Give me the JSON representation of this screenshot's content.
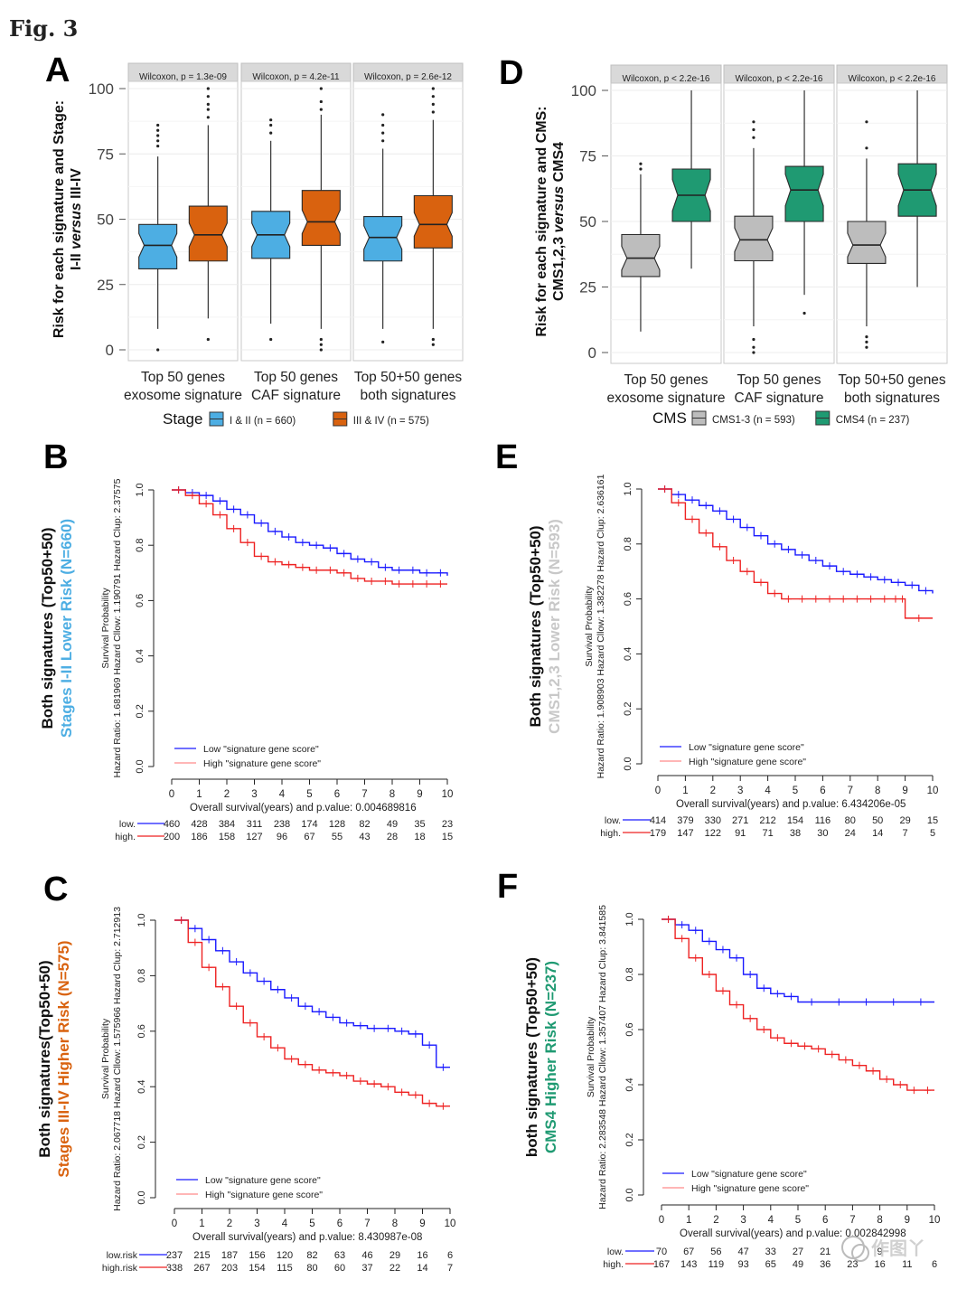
{
  "figure_label": "Fig. 3",
  "chart_data": [
    {
      "panel": "A",
      "type": "box",
      "ylabel": "Risk for each signature and Stage:\nI-II versus III-IV",
      "ylim": [
        0,
        100
      ],
      "yticks": [
        0,
        25,
        50,
        75,
        100
      ],
      "legend_title": "Stage",
      "legend": [
        {
          "label": "I & II (n = 660)",
          "color": "#4daee3"
        },
        {
          "label": "III & IV (n = 575)",
          "color": "#d9620f"
        }
      ],
      "facets": [
        {
          "strip": "Wilcoxon, p = 1.3e-09",
          "label1": "Top 50 genes",
          "label2": "exosome signature",
          "boxes": [
            {
              "min": 8,
              "q1": 31,
              "median": 40,
              "q3": 48,
              "max": 74,
              "notch": 1.5,
              "outliers": [
                0,
                78,
                80,
                82,
                84,
                86
              ]
            },
            {
              "min": 12,
              "q1": 34,
              "median": 44,
              "q3": 55,
              "max": 86,
              "notch": 1.5,
              "outliers": [
                4,
                89,
                92,
                94,
                97,
                100
              ]
            }
          ]
        },
        {
          "strip": "Wilcoxon, p = 4.2e-11",
          "label1": "Top 50 genes",
          "label2": "CAF signature",
          "boxes": [
            {
              "min": 10,
              "q1": 35,
              "median": 44,
              "q3": 53,
              "max": 80,
              "notch": 1.5,
              "outliers": [
                4,
                83,
                86,
                88
              ]
            },
            {
              "min": 8,
              "q1": 40,
              "median": 49,
              "q3": 61,
              "max": 90,
              "notch": 1.5,
              "outliers": [
                0,
                2,
                4,
                92,
                95,
                100
              ]
            }
          ]
        },
        {
          "strip": "Wilcoxon, p = 2.6e-12",
          "label1": "Top 50+50 genes",
          "label2": "both signatures",
          "boxes": [
            {
              "min": 8,
              "q1": 34,
              "median": 43,
              "q3": 51,
              "max": 77,
              "notch": 1.5,
              "outliers": [
                3,
                80,
                83,
                86,
                90
              ]
            },
            {
              "min": 8,
              "q1": 39,
              "median": 48,
              "q3": 59,
              "max": 88,
              "notch": 1.5,
              "outliers": [
                2,
                4,
                91,
                94,
                97,
                100
              ]
            }
          ]
        }
      ]
    },
    {
      "panel": "D",
      "type": "box",
      "ylabel": "Risk for each signature and CMS:\nCMS1,2,3 versus CMS4",
      "ylim": [
        0,
        100
      ],
      "yticks": [
        0,
        25,
        50,
        75,
        100
      ],
      "legend_title": "CMS",
      "legend": [
        {
          "label": "CMS1-3 (n = 593)",
          "color": "#bdbdbd"
        },
        {
          "label": "CMS4 (n = 237)",
          "color": "#1f9a72"
        }
      ],
      "facets": [
        {
          "strip": "Wilcoxon, p < 2.2e-16",
          "label1": "Top 50 genes",
          "label2": "exosome signature",
          "boxes": [
            {
              "min": 8,
              "q1": 29,
              "median": 36,
              "q3": 45,
              "max": 68,
              "notch": 1.5,
              "outliers": [
                70,
                72
              ]
            },
            {
              "min": 32,
              "q1": 50,
              "median": 60,
              "q3": 70,
              "max": 100,
              "notch": 2,
              "outliers": []
            }
          ]
        },
        {
          "strip": "Wilcoxon, p < 2.2e-16",
          "label1": "Top 50 genes",
          "label2": "CAF signature",
          "boxes": [
            {
              "min": 10,
              "q1": 35,
              "median": 43,
              "q3": 52,
              "max": 78,
              "notch": 1.5,
              "outliers": [
                0,
                2,
                5,
                82,
                85,
                88
              ]
            },
            {
              "min": 22,
              "q1": 50,
              "median": 62,
              "q3": 71,
              "max": 100,
              "notch": 2,
              "outliers": [
                15
              ]
            }
          ]
        },
        {
          "strip": "Wilcoxon, p < 2.2e-16",
          "label1": "Top 50+50 genes",
          "label2": "both signatures",
          "boxes": [
            {
              "min": 10,
              "q1": 34,
              "median": 41,
              "q3": 50,
              "max": 74,
              "notch": 1.5,
              "outliers": [
                2,
                4,
                6,
                78,
                88
              ]
            },
            {
              "min": 25,
              "q1": 52,
              "median": 62,
              "q3": 72,
              "max": 100,
              "notch": 2,
              "outliers": []
            }
          ]
        }
      ]
    },
    {
      "panel": "B",
      "type": "line",
      "ylabel_outer": "Both signatures (Top50+50)",
      "ylabel_outer2": "Stages I-II Lower Risk (N=660)",
      "ylabel_outer2_color": "#4daee3",
      "hr_text": "Hazard Ratio: 1.681969  Hazard Cllow: 1.190791  Hazard Clup: 2.37575",
      "ylabel": "Survival Probability",
      "xlabel": "Overall survival(years) and p.value:  0.004689816",
      "xlim": [
        0,
        10
      ],
      "ylim": [
        0,
        1
      ],
      "xticks": [
        0,
        1,
        2,
        3,
        4,
        5,
        6,
        7,
        8,
        9,
        10
      ],
      "yticks": [
        0.0,
        0.2,
        0.4,
        0.6,
        0.8,
        1.0
      ],
      "legend": [
        "Low \"signature gene score\"",
        "High \"signature gene score\""
      ],
      "series": [
        {
          "name": "Low \"signature gene score\"",
          "color": "#1a1aff",
          "x": [
            0,
            0.5,
            1,
            1.5,
            2,
            2.5,
            3,
            3.5,
            4,
            4.5,
            5,
            5.5,
            6,
            6.5,
            7,
            7.5,
            8,
            8.5,
            9,
            9.5,
            10
          ],
          "y": [
            1.0,
            0.99,
            0.98,
            0.96,
            0.93,
            0.91,
            0.88,
            0.85,
            0.83,
            0.81,
            0.8,
            0.79,
            0.77,
            0.75,
            0.74,
            0.72,
            0.71,
            0.71,
            0.7,
            0.7,
            0.69
          ]
        },
        {
          "name": "High \"signature gene score\"",
          "color": "#ee2222",
          "x": [
            0,
            0.5,
            1,
            1.5,
            2,
            2.5,
            3,
            3.5,
            4,
            4.5,
            5,
            5.5,
            6,
            6.5,
            7,
            7.5,
            8,
            8.5,
            9,
            9.5,
            10
          ],
          "y": [
            1.0,
            0.98,
            0.95,
            0.91,
            0.86,
            0.81,
            0.76,
            0.74,
            0.73,
            0.72,
            0.71,
            0.71,
            0.7,
            0.68,
            0.67,
            0.67,
            0.66,
            0.66,
            0.66,
            0.66,
            0.66
          ]
        }
      ],
      "risk_table": [
        {
          "label": "low.",
          "values": [
            "460",
            "428",
            "384",
            "311",
            "238",
            "174",
            "128",
            "82",
            "49",
            "35",
            "23"
          ]
        },
        {
          "label": "high.",
          "values": [
            "200",
            "186",
            "158",
            "127",
            "96",
            "67",
            "55",
            "43",
            "28",
            "18",
            "15"
          ]
        }
      ]
    },
    {
      "panel": "E",
      "type": "line",
      "ylabel_outer": "Both signatures (Top50+50)",
      "ylabel_outer2": "CMS1,2,3 Lower Risk (N=593)",
      "ylabel_outer2_color": "#c8c8c8",
      "hr_text": "Hazard Ratio: 1.908903  Hazard Cllow: 1.382278  Hazard Clup: 2.636161",
      "ylabel": "Survival Probability",
      "xlabel": "Overall survival(years) and p.value:  6.434206e-05",
      "xlim": [
        0,
        10
      ],
      "ylim": [
        0,
        1
      ],
      "xticks": [
        0,
        1,
        2,
        3,
        4,
        5,
        6,
        7,
        8,
        9,
        10
      ],
      "yticks": [
        0.0,
        0.2,
        0.4,
        0.6,
        0.8,
        1.0
      ],
      "legend": [
        "Low \"signature gene score\"",
        "High \"signature gene score\""
      ],
      "series": [
        {
          "name": "Low \"signature gene score\"",
          "color": "#1a1aff",
          "x": [
            0,
            0.5,
            1,
            1.5,
            2,
            2.5,
            3,
            3.5,
            4,
            4.5,
            5,
            5.5,
            6,
            6.5,
            7,
            7.5,
            8,
            8.5,
            9,
            9.5,
            10
          ],
          "y": [
            1.0,
            0.98,
            0.96,
            0.94,
            0.92,
            0.89,
            0.86,
            0.83,
            0.8,
            0.78,
            0.76,
            0.74,
            0.72,
            0.7,
            0.69,
            0.68,
            0.67,
            0.66,
            0.65,
            0.63,
            0.62
          ]
        },
        {
          "name": "High \"signature gene score\"",
          "color": "#ee2222",
          "x": [
            0,
            0.5,
            1,
            1.5,
            2,
            2.5,
            3,
            3.5,
            4,
            4.5,
            5,
            5.5,
            6,
            6.5,
            7,
            7.5,
            8,
            8.5,
            8.8,
            9,
            10
          ],
          "y": [
            1.0,
            0.95,
            0.89,
            0.84,
            0.79,
            0.74,
            0.7,
            0.66,
            0.62,
            0.6,
            0.6,
            0.6,
            0.6,
            0.6,
            0.6,
            0.6,
            0.6,
            0.6,
            0.6,
            0.53,
            0.53
          ]
        }
      ],
      "risk_table": [
        {
          "label": "low.",
          "values": [
            "414",
            "379",
            "330",
            "271",
            "212",
            "154",
            "116",
            "80",
            "50",
            "29",
            "15"
          ]
        },
        {
          "label": "high.",
          "values": [
            "179",
            "147",
            "122",
            "91",
            "71",
            "38",
            "30",
            "24",
            "14",
            "7",
            "5"
          ]
        }
      ]
    },
    {
      "panel": "C",
      "type": "line",
      "ylabel_outer": "Both signatures(Top50+50)",
      "ylabel_outer2": "Stages III-IV Higher Risk (N=575)",
      "ylabel_outer2_color": "#d9620f",
      "hr_text": "Hazard Ratio: 2.067718  Hazard Cllow: 1.575966  Hazard Clup: 2.712913",
      "ylabel": "Survival Probability",
      "xlabel": "Overall survival(years) and p.value:  8.430987e-08",
      "xlim": [
        0,
        10
      ],
      "ylim": [
        0,
        1
      ],
      "xticks": [
        0,
        1,
        2,
        3,
        4,
        5,
        6,
        7,
        8,
        9,
        10
      ],
      "yticks": [
        0.0,
        0.2,
        0.4,
        0.6,
        0.8,
        1.0
      ],
      "legend": [
        "Low \"signature gene score\"",
        "High \"signature gene score\""
      ],
      "series": [
        {
          "name": "Low \"signature gene score\"",
          "color": "#1a1aff",
          "x": [
            0,
            0.5,
            1,
            1.5,
            2,
            2.5,
            3,
            3.5,
            4,
            4.5,
            5,
            5.5,
            6,
            6.5,
            7,
            7.5,
            8,
            8.5,
            9,
            9.5,
            10
          ],
          "y": [
            1.0,
            0.97,
            0.93,
            0.89,
            0.85,
            0.81,
            0.78,
            0.75,
            0.72,
            0.69,
            0.67,
            0.65,
            0.63,
            0.62,
            0.61,
            0.61,
            0.6,
            0.59,
            0.55,
            0.47,
            0.47
          ]
        },
        {
          "name": "High \"signature gene score\"",
          "color": "#ee2222",
          "x": [
            0,
            0.5,
            1,
            1.5,
            2,
            2.5,
            3,
            3.5,
            4,
            4.5,
            5,
            5.5,
            6,
            6.5,
            7,
            7.5,
            8,
            8.5,
            9,
            9.5,
            10
          ],
          "y": [
            1.0,
            0.92,
            0.83,
            0.76,
            0.69,
            0.63,
            0.58,
            0.54,
            0.5,
            0.48,
            0.46,
            0.45,
            0.44,
            0.42,
            0.41,
            0.4,
            0.38,
            0.37,
            0.34,
            0.33,
            0.33
          ]
        }
      ],
      "risk_table": [
        {
          "label": "low.risk",
          "values": [
            "237",
            "215",
            "187",
            "156",
            "120",
            "82",
            "63",
            "46",
            "29",
            "16",
            "6"
          ]
        },
        {
          "label": "high.risk",
          "values": [
            "338",
            "267",
            "203",
            "154",
            "115",
            "80",
            "60",
            "37",
            "22",
            "14",
            "7"
          ]
        }
      ]
    },
    {
      "panel": "F",
      "type": "line",
      "ylabel_outer": "both signatures (Top50+50)",
      "ylabel_outer2": "CMS4 Higher Risk (N=237)",
      "ylabel_outer2_color": "#1f9a72",
      "hr_text": "Hazard Ratio: 2.283548  Hazard Cllow: 1.357407  Hazard Clup: 3.841585",
      "ylabel": "Survival Probability",
      "xlabel": "Overall survival(years) and p.value:  0.002842998",
      "xlim": [
        0,
        10
      ],
      "ylim": [
        0,
        1
      ],
      "xticks": [
        0,
        1,
        2,
        3,
        4,
        5,
        6,
        7,
        8,
        9,
        10
      ],
      "yticks": [
        0.0,
        0.2,
        0.4,
        0.6,
        0.8,
        1.0
      ],
      "legend": [
        "Low \"signature gene score\"",
        "High \"signature gene score\""
      ],
      "series": [
        {
          "name": "Low \"signature gene score\"",
          "color": "#1a1aff",
          "x": [
            0,
            0.5,
            1,
            1.5,
            2,
            2.5,
            3,
            3.5,
            4,
            4.5,
            5,
            6,
            7,
            8,
            9,
            10
          ],
          "y": [
            1.0,
            0.98,
            0.96,
            0.92,
            0.89,
            0.86,
            0.8,
            0.75,
            0.73,
            0.72,
            0.7,
            0.7,
            0.7,
            0.7,
            0.7,
            0.7
          ]
        },
        {
          "name": "High \"signature gene score\"",
          "color": "#ee2222",
          "x": [
            0,
            0.5,
            1,
            1.5,
            2,
            2.5,
            3,
            3.5,
            4,
            4.5,
            5,
            5.5,
            6,
            6.5,
            7,
            7.5,
            8,
            8.5,
            9,
            9.5,
            10
          ],
          "y": [
            1.0,
            0.93,
            0.86,
            0.8,
            0.74,
            0.69,
            0.64,
            0.6,
            0.57,
            0.55,
            0.54,
            0.53,
            0.51,
            0.49,
            0.47,
            0.45,
            0.42,
            0.4,
            0.38,
            0.38,
            0.38
          ]
        }
      ],
      "risk_table": [
        {
          "label": "low.",
          "values": [
            "70",
            "67",
            "56",
            "47",
            "33",
            "27",
            "21",
            "",
            "9",
            "",
            ""
          ]
        },
        {
          "label": "high.",
          "values": [
            "167",
            "143",
            "119",
            "93",
            "65",
            "49",
            "36",
            "23",
            "16",
            "11",
            "6"
          ]
        }
      ]
    }
  ],
  "watermark": "作图丫"
}
